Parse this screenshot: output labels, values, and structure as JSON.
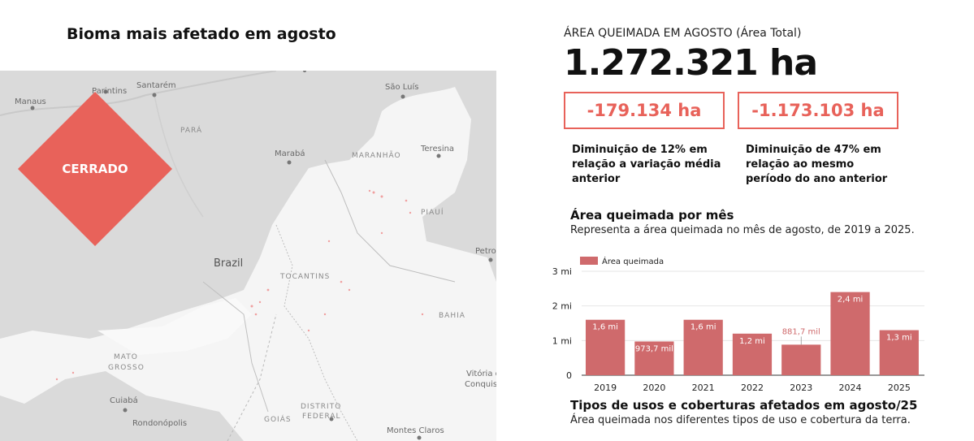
{
  "left_panel": {
    "title": "Bioma mais afetado em agosto",
    "biome_badge": "CERRADO",
    "map_labels": {
      "manaus": "Manaus",
      "parintins": "Parintins",
      "santarem": "Santarém",
      "sao_luis": "São Luís",
      "para": "PARÁ",
      "maraba": "Marabá",
      "maranhao": "MARANHÃO",
      "teresina": "Teresina",
      "piaui": "PIAUÍ",
      "petro": "Petro",
      "brazil": "Brazil",
      "tocantins": "TOCANTINS",
      "bahia": "BAHIA",
      "mato_grosso_1": "MATO",
      "mato_grosso_2": "GROSSO",
      "cuiaba": "Cuiabá",
      "rondonopolis": "Rondonópolis",
      "goias": "GOIÁS",
      "distrito_1": "DISTRITO",
      "distrito_2": "FEDERAL",
      "vitoria_1": "Vitória d",
      "vitoria_2": "Conquis",
      "montes_claros": "Montes Claros"
    }
  },
  "kpi": {
    "label": "ÁREA QUEIMADA EM AGOSTO (Área Total)",
    "value": "1.272.321 ha",
    "delta1": "-179.134 ha",
    "delta1_desc": "Diminuição de 12% em relação a variação média anterior",
    "delta2": "-1.173.103 ha",
    "delta2_desc": "Diminuição de 47% em relação ao mesmo período do ano anterior"
  },
  "monthly": {
    "title": "Área queimada por mês",
    "subtitle": "Representa a área queimada no mês de agosto, de 2019 a 2025."
  },
  "chart_data": {
    "type": "bar",
    "categories": [
      "2019",
      "2020",
      "2021",
      "2022",
      "2023",
      "2024",
      "2025"
    ],
    "series": [
      {
        "name": "Área queimada",
        "values": [
          1600000,
          973700,
          1600000,
          1200000,
          881700,
          2400000,
          1300000
        ]
      }
    ],
    "data_labels": [
      "1,6 mi",
      "973,7 mil",
      "1,6 mi",
      "1,2 mi",
      "881,7 mil",
      "2,4 mi",
      "1,3 mi"
    ],
    "y_ticks": [
      0,
      1000000,
      2000000,
      3000000
    ],
    "y_tick_labels": [
      "0",
      "1 mi",
      "2 mi",
      "3 mi"
    ],
    "ylim": [
      0,
      3000000
    ],
    "legend": "top-left",
    "grid": true,
    "bar_color": "#cf6a6c"
  },
  "usage": {
    "title": "Tipos de usos e coberturas afetados em agosto/25",
    "subtitle": "Área queimada nos diferentes tipos de uso e cobertura da terra."
  },
  "colors": {
    "accent": "#e8625a",
    "bar": "#cf6a6c"
  }
}
